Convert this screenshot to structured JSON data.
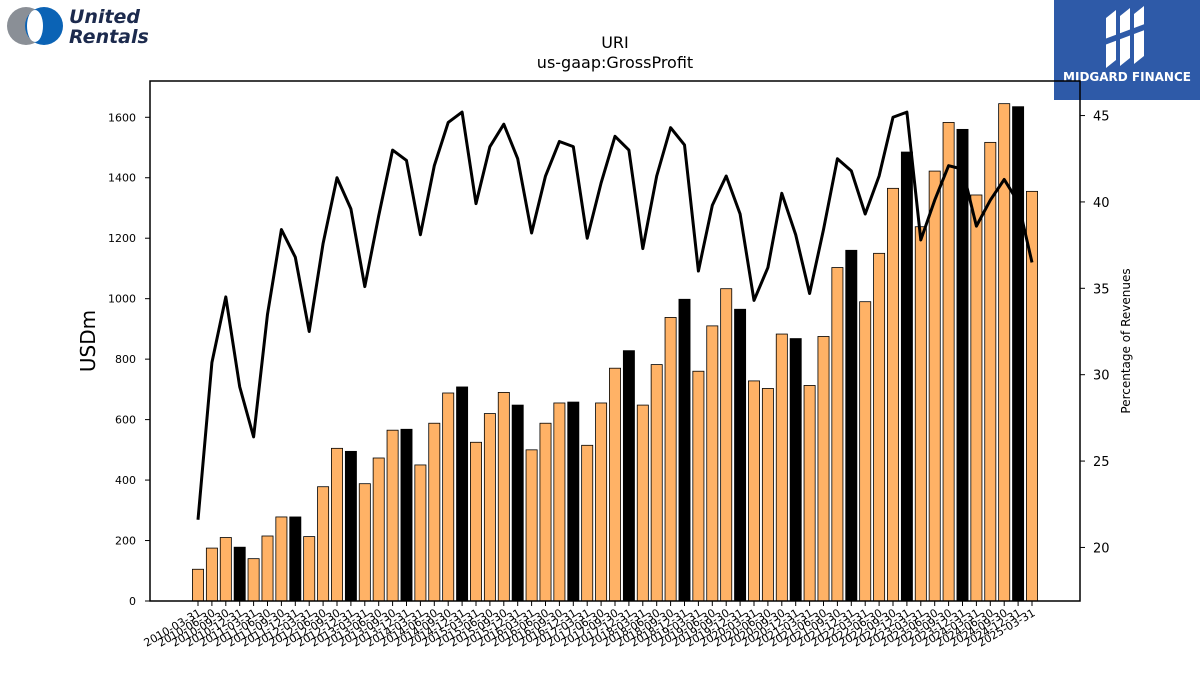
{
  "branding": {
    "company_line1": "United",
    "company_line2": "Rentals",
    "finance_label": "MIDGARD FINANCE"
  },
  "chart_data": {
    "type": "bar",
    "title": "URI",
    "subtitle": "us-gaap:GrossProfit",
    "ylabel": "USDm",
    "y2label": "Percentage of Revenues",
    "ylim": [
      0,
      1720
    ],
    "y2lim": [
      16.9,
      47.0
    ],
    "yticks": [
      0,
      200,
      400,
      600,
      800,
      1000,
      1200,
      1400,
      1600
    ],
    "y2ticks": [
      20,
      25,
      30,
      35,
      40,
      45
    ],
    "bar_color": "#ffb266",
    "highlight_color": "#000000",
    "line_color": "#000000",
    "categories": [
      "2010-03-31",
      "2010-06-30",
      "2010-09-30",
      "2010-12-31",
      "2011-03-31",
      "2011-06-30",
      "2011-09-30",
      "2011-12-31",
      "2012-03-31",
      "2012-06-30",
      "2012-09-30",
      "2012-12-31",
      "2013-03-31",
      "2013-06-30",
      "2013-09-30",
      "2013-12-31",
      "2014-03-31",
      "2014-06-30",
      "2014-09-30",
      "2014-12-31",
      "2015-03-31",
      "2015-06-30",
      "2015-09-30",
      "2015-12-31",
      "2016-03-31",
      "2016-06-30",
      "2016-09-30",
      "2016-12-31",
      "2017-03-31",
      "2017-06-30",
      "2017-09-30",
      "2017-12-31",
      "2018-03-31",
      "2018-06-30",
      "2018-09-30",
      "2018-12-31",
      "2019-03-31",
      "2019-06-30",
      "2019-09-30",
      "2019-12-31",
      "2020-03-31",
      "2020-06-30",
      "2020-09-30",
      "2020-12-31",
      "2021-03-31",
      "2021-06-30",
      "2021-09-30",
      "2021-12-31",
      "2022-03-31",
      "2022-06-30",
      "2022-09-30",
      "2022-12-31",
      "2023-03-31",
      "2023-06-30",
      "2023-09-30",
      "2023-12-31",
      "2024-03-31",
      "2024-06-30",
      "2024-09-30",
      "2024-12-31",
      "2025-03-31"
    ],
    "values": [
      105,
      175,
      210,
      178,
      140,
      215,
      278,
      278,
      213,
      378,
      505,
      495,
      388,
      473,
      565,
      568,
      450,
      588,
      688,
      708,
      525,
      620,
      690,
      648,
      500,
      588,
      655,
      658,
      515,
      655,
      770,
      828,
      648,
      782,
      938,
      998,
      760,
      910,
      1033,
      965,
      728,
      703,
      883,
      868,
      713,
      875,
      1103,
      1160,
      990,
      1150,
      1365,
      1485,
      1238,
      1422,
      1583,
      1560,
      1343,
      1517,
      1645,
      1635,
      1355
    ],
    "highlight": [
      false,
      false,
      false,
      true,
      false,
      false,
      false,
      true,
      false,
      false,
      false,
      true,
      false,
      false,
      false,
      true,
      false,
      false,
      false,
      true,
      false,
      false,
      false,
      true,
      false,
      false,
      false,
      true,
      false,
      false,
      false,
      true,
      false,
      false,
      false,
      true,
      false,
      false,
      false,
      true,
      false,
      false,
      false,
      true,
      false,
      false,
      false,
      true,
      false,
      false,
      false,
      true,
      false,
      false,
      false,
      true,
      false,
      false,
      false,
      true,
      false
    ],
    "percent_series": [
      21.6,
      30.7,
      34.5,
      29.3,
      26.4,
      33.5,
      38.4,
      36.8,
      32.5,
      37.6,
      41.4,
      39.6,
      35.1,
      39.2,
      43.0,
      42.4,
      38.1,
      42.1,
      44.6,
      45.2,
      39.9,
      43.2,
      44.5,
      42.5,
      38.2,
      41.5,
      43.5,
      43.2,
      37.9,
      41.1,
      43.8,
      43.0,
      37.3,
      41.5,
      44.3,
      43.3,
      36.0,
      39.8,
      41.5,
      39.3,
      34.3,
      36.2,
      40.5,
      38.1,
      34.7,
      38.4,
      42.5,
      41.8,
      39.3,
      41.5,
      44.9,
      45.2,
      37.8,
      40.1,
      42.1,
      41.9,
      38.6,
      40.1,
      41.3,
      40.0,
      36.5
    ]
  }
}
